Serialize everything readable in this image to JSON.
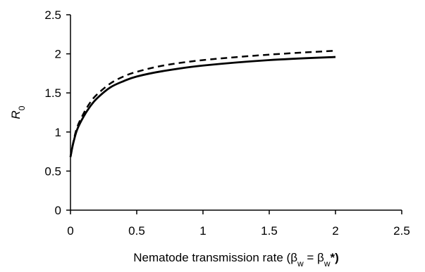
{
  "chart_data": {
    "type": "line",
    "title": "",
    "xlabel_main": "Nematode transmission rate (β",
    "xlabel_sub1": "w",
    "xlabel_mid": " = β",
    "xlabel_sub2": "w",
    "xlabel_end": "*)",
    "ylabel_main": "R",
    "ylabel_sub": "0",
    "xlim": [
      0,
      2.5
    ],
    "ylim": [
      0,
      2.5
    ],
    "x_ticks": [
      "0",
      "0.5",
      "1",
      "1.5",
      "2",
      "2.5"
    ],
    "y_ticks": [
      "0",
      "0.5",
      "1",
      "1.5",
      "2",
      "2.5"
    ],
    "grid": false,
    "legend": "none",
    "series": [
      {
        "style": "solid",
        "color": "#000000",
        "x": [
          0,
          0.02,
          0.05,
          0.1,
          0.15,
          0.2,
          0.3,
          0.4,
          0.5,
          0.7,
          1.0,
          1.5,
          2.0
        ],
        "y": [
          0.68,
          0.85,
          1.03,
          1.2,
          1.33,
          1.43,
          1.57,
          1.65,
          1.71,
          1.78,
          1.85,
          1.92,
          1.96
        ]
      },
      {
        "style": "dashed",
        "color": "#000000",
        "x": [
          0,
          0.02,
          0.05,
          0.1,
          0.15,
          0.2,
          0.3,
          0.4,
          0.5,
          0.7,
          1.0,
          1.5,
          2.0
        ],
        "y": [
          0.68,
          0.86,
          1.06,
          1.24,
          1.38,
          1.48,
          1.62,
          1.71,
          1.77,
          1.85,
          1.92,
          1.99,
          2.04
        ]
      }
    ]
  }
}
